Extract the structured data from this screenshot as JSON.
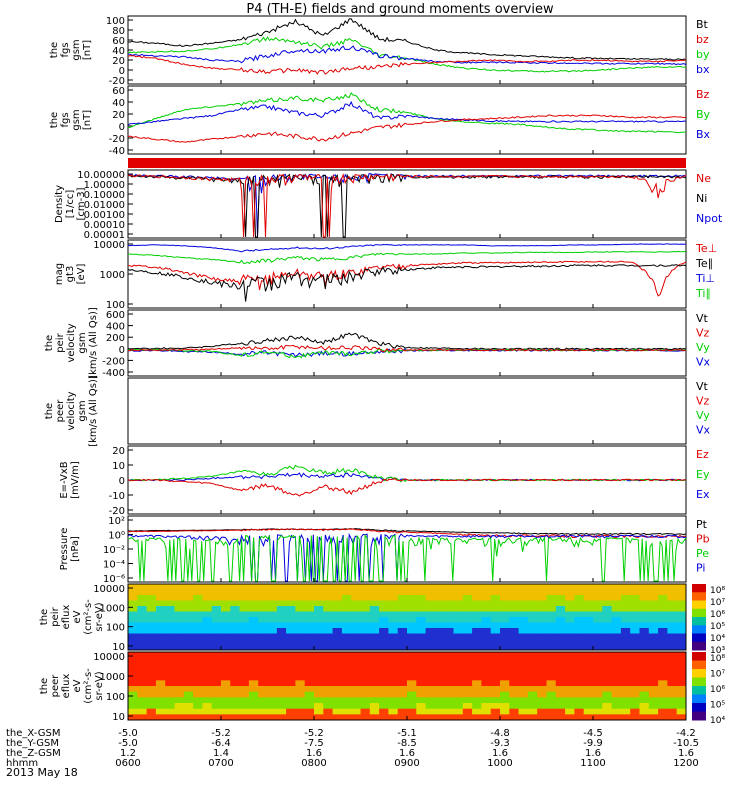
{
  "title": "P4 (TH-E) fields and ground moments overview",
  "date": "2013 May 18",
  "colors": {
    "black": "#000000",
    "red": "#e00000",
    "green": "#00d000",
    "blue": "#0000e0"
  },
  "chart_data": {
    "type": "line",
    "x_range": [
      "0600",
      "1200"
    ],
    "time_ticks": [
      "0600",
      "0700",
      "0800",
      "0900",
      "1000",
      "1100",
      "1200"
    ],
    "orbit": {
      "labels": [
        "the_X-GSM",
        "the_Y-GSM",
        "the_Z-GSM",
        "hhmm"
      ],
      "rows": [
        [
          "-5.0",
          "-5.2",
          "-5.2",
          "-5.1",
          "-4.8",
          "-4.5",
          "-4.2"
        ],
        [
          "-5.0",
          "-6.4",
          "-7.5",
          "-8.5",
          "-9.3",
          "-9.9",
          "-10.5"
        ],
        [
          "1.2",
          "1.4",
          "1.6",
          "1.6",
          "1.6",
          "1.6",
          "1.6"
        ]
      ]
    },
    "panels": [
      {
        "ylabel": [
          "the",
          "fgs",
          "gsm",
          "[nT]"
        ],
        "yticks": [
          "100",
          "80",
          "60",
          "40",
          "20",
          "0",
          "-20"
        ],
        "ylim": [
          -20,
          100
        ],
        "legend": [
          {
            "label": "Bt",
            "color": "#000000"
          },
          {
            "label": "bz",
            "color": "#e00000"
          },
          {
            "label": "by",
            "color": "#00d000"
          },
          {
            "label": "bx",
            "color": "#0000e0"
          }
        ],
        "series": [
          {
            "color": "#000000",
            "values": [
              55,
              52,
              47,
              52,
              58,
              72,
              90,
              65,
              95,
              60,
              55,
              40,
              35,
              32,
              30,
              28,
              26,
              25,
              24,
              24,
              23
            ]
          },
          {
            "color": "#00d000",
            "values": [
              35,
              37,
              38,
              42,
              50,
              60,
              55,
              45,
              58,
              30,
              25,
              15,
              8,
              5,
              3,
              2,
              3,
              5,
              8,
              10,
              10
            ]
          },
          {
            "color": "#0000e0",
            "values": [
              32,
              30,
              28,
              22,
              20,
              30,
              40,
              38,
              45,
              30,
              25,
              20,
              18,
              18,
              18,
              17,
              17,
              16,
              16,
              16,
              15
            ]
          },
          {
            "color": "#e00000",
            "values": [
              30,
              25,
              15,
              8,
              5,
              2,
              5,
              0,
              8,
              10,
              15,
              18,
              20,
              22,
              20,
              20,
              22,
              22,
              20,
              20,
              22
            ]
          }
        ]
      },
      {
        "ylabel": [
          "the",
          "fgs",
          "gsm",
          "[nT]"
        ],
        "yticks": [
          "60",
          "40",
          "20",
          "0",
          "-20",
          "-40"
        ],
        "ylim": [
          -50,
          65
        ],
        "legend": [
          {
            "label": "Bz",
            "color": "#e00000"
          },
          {
            "label": "By",
            "color": "#00d000"
          },
          {
            "label": "Bx",
            "color": "#0000e0"
          }
        ],
        "series": [
          {
            "color": "#00d000",
            "values": [
              -5,
              10,
              25,
              30,
              35,
              40,
              45,
              40,
              50,
              25,
              20,
              10,
              5,
              2,
              0,
              -5,
              -8,
              -10,
              -12,
              -12,
              -13
            ]
          },
          {
            "color": "#0000e0",
            "values": [
              0,
              5,
              10,
              15,
              25,
              30,
              20,
              15,
              35,
              10,
              15,
              10,
              8,
              6,
              5,
              5,
              5,
              5,
              5,
              5,
              5
            ]
          },
          {
            "color": "#e00000",
            "values": [
              -20,
              -25,
              -30,
              -25,
              -20,
              -15,
              -20,
              -25,
              -15,
              -5,
              0,
              5,
              8,
              10,
              12,
              15,
              15,
              15,
              12,
              12,
              12
            ]
          }
        ]
      },
      {
        "ylabel": [
          "Density",
          "[1/cc]",
          "[cm-3]"
        ],
        "yticks": [
          "10.00000",
          "1.00000",
          "0.10000",
          "0.01000",
          "0.00100",
          "0.00010",
          "0.00001"
        ],
        "ylim": [
          -5,
          1
        ],
        "log": true,
        "legend": [
          {
            "label": "Ne",
            "color": "#e00000"
          },
          {
            "label": "Ni",
            "color": "#000000"
          },
          {
            "label": "Npot",
            "color": "#0000e0"
          }
        ],
        "series": [
          {
            "color": "#0000e0",
            "values": [
              0.35,
              0.3,
              0.25,
              0.2,
              0.15,
              0.2,
              0.3,
              0.2,
              0.25,
              0.3,
              0.3,
              0.3,
              0.3,
              0.3,
              0.3,
              0.3,
              0.3,
              0.3,
              0.3,
              0.3,
              0.3
            ]
          },
          {
            "color": "#000000",
            "values": [
              0.3,
              0.25,
              0.2,
              0.15,
              0.12,
              0.15,
              0.25,
              0.15,
              0.2,
              0.25,
              0.25,
              0.25,
              0.25,
              0.25,
              0.25,
              0.25,
              0.25,
              0.25,
              0.25,
              0.25,
              0.25
            ]
          },
          {
            "color": "#e00000",
            "values": [
              0.32,
              0.27,
              0.22,
              0.17,
              0.13,
              0.17,
              0.27,
              0.17,
              0.22,
              0.27,
              0.27,
              0.27,
              0.27,
              0.27,
              0.27,
              0.27,
              0.27,
              0.27,
              0.27,
              1e-05,
              0.27
            ]
          }
        ]
      },
      {
        "ylabel": [
          "mag",
          "gt3",
          "[eV]"
        ],
        "yticks": [
          "10000",
          "1000",
          "100"
        ],
        "ylim": [
          100,
          12000
        ],
        "log": true,
        "legend": [
          {
            "label": "Te⊥",
            "color": "#e00000"
          },
          {
            "label": "Te∥",
            "color": "#000000"
          },
          {
            "label": "Ti⊥",
            "color": "#0000e0"
          },
          {
            "label": "Ti∥",
            "color": "#00d000"
          }
        ],
        "series": [
          {
            "color": "#0000e0",
            "values": [
              8000,
              8500,
              8000,
              7000,
              5500,
              6000,
              7000,
              6500,
              7500,
              8500,
              8500,
              8500,
              8500,
              8000,
              8000,
              8000,
              8500,
              8500,
              9000,
              9000,
              9000
            ]
          },
          {
            "color": "#00d000",
            "values": [
              4500,
              4000,
              3500,
              3000,
              2500,
              2800,
              3500,
              3000,
              3500,
              4500,
              4500,
              4500,
              4800,
              4800,
              5000,
              5000,
              5000,
              5200,
              5200,
              5200,
              5300
            ]
          },
          {
            "color": "#e00000",
            "values": [
              2000,
              1800,
              1200,
              800,
              600,
              800,
              1200,
              900,
              1200,
              1800,
              2000,
              2200,
              2400,
              2400,
              2500,
              2500,
              2600,
              2600,
              2600,
              150,
              2600
            ]
          },
          {
            "color": "#000000",
            "values": [
              1500,
              1200,
              900,
              600,
              450,
              600,
              900,
              700,
              900,
              1400,
              1500,
              1700,
              1800,
              1800,
              1900,
              1900,
              2000,
              2000,
              2000,
              2000,
              2000
            ]
          }
        ]
      },
      {
        "ylabel": [
          "the",
          "peir",
          "velocity",
          "gsm",
          "[km/s (All Qs)]"
        ],
        "yticks": [
          "600",
          "400",
          "200",
          "0",
          "-200",
          "-400"
        ],
        "ylim": [
          -400,
          620
        ],
        "legend": [
          {
            "label": "Vt",
            "color": "#000000"
          },
          {
            "label": "Vz",
            "color": "#e00000"
          },
          {
            "label": "Vy",
            "color": "#00d000"
          },
          {
            "label": "Vx",
            "color": "#0000e0"
          }
        ],
        "series": [
          {
            "color": "#000000",
            "values": [
              20,
              25,
              30,
              60,
              100,
              150,
              200,
              120,
              250,
              100,
              40,
              30,
              25,
              20,
              20,
              20,
              20,
              20,
              20,
              20,
              20
            ]
          },
          {
            "color": "#0000e0",
            "values": [
              -10,
              -5,
              -20,
              -30,
              -60,
              -40,
              -80,
              -50,
              -60,
              -20,
              -10,
              -5,
              -5,
              -5,
              -5,
              -5,
              -5,
              -5,
              -5,
              -5,
              -5
            ]
          },
          {
            "color": "#00d000",
            "values": [
              0,
              5,
              -10,
              -20,
              -80,
              -30,
              -100,
              -40,
              -60,
              -15,
              -5,
              0,
              0,
              0,
              0,
              0,
              0,
              0,
              0,
              0,
              0
            ]
          },
          {
            "color": "#e00000",
            "values": [
              0,
              0,
              5,
              10,
              40,
              20,
              60,
              30,
              40,
              10,
              5,
              0,
              0,
              0,
              0,
              0,
              0,
              0,
              0,
              0,
              0
            ]
          }
        ]
      },
      {
        "ylabel": [
          "the",
          "peer",
          "velocity",
          "gsm",
          "[km/s (All Qs)]"
        ],
        "yticks": [],
        "ylim": [
          -1,
          1
        ],
        "legend": [
          {
            "label": "Vt",
            "color": "#000000"
          },
          {
            "label": "Vz",
            "color": "#e00000"
          },
          {
            "label": "Vy",
            "color": "#00d000"
          },
          {
            "label": "Vx",
            "color": "#0000e0"
          }
        ],
        "series": []
      },
      {
        "ylabel": [
          "E=-VxB",
          "[mV/m]"
        ],
        "yticks": [
          "20",
          "10",
          "0",
          "-10",
          "-20"
        ],
        "ylim": [
          -20,
          20
        ],
        "legend": [
          {
            "label": "Ez",
            "color": "#e00000"
          },
          {
            "label": "Ey",
            "color": "#00d000"
          },
          {
            "label": "Ex",
            "color": "#0000e0"
          }
        ],
        "series": [
          {
            "color": "#0000e0",
            "values": [
              0,
              0,
              0,
              1,
              2,
              2,
              3,
              2,
              3,
              1,
              0,
              0,
              0,
              0,
              0,
              0,
              0,
              0,
              0,
              0,
              0
            ]
          },
          {
            "color": "#00d000",
            "values": [
              0,
              0,
              1,
              2,
              5,
              3,
              8,
              4,
              6,
              1,
              0,
              0,
              0,
              0,
              0,
              0,
              0,
              0,
              0,
              0,
              0
            ]
          },
          {
            "color": "#e00000",
            "values": [
              0,
              0,
              -1,
              -2,
              -6,
              -3,
              -9,
              -4,
              -7,
              -1,
              0,
              0,
              0,
              0,
              0,
              0,
              0,
              0,
              0,
              0,
              0
            ]
          }
        ]
      },
      {
        "ylabel": [
          "Pressure",
          "[nPa]"
        ],
        "yticks": [
          "10²",
          "10⁰",
          "10⁻²",
          "10⁻⁴",
          "10⁻⁶"
        ],
        "ylim": [
          -6.5,
          2
        ],
        "log": true,
        "legend": [
          {
            "label": "Pt",
            "color": "#000000"
          },
          {
            "label": "Pb",
            "color": "#e00000"
          },
          {
            "label": "Pe",
            "color": "#00d000"
          },
          {
            "label": "Pi",
            "color": "#0000e0"
          }
        ],
        "series": [
          {
            "color": "#000000",
            "values": [
              1.2,
              1.3,
              1.4,
              1.5,
              1.7,
              1.9,
              2.0,
              1.8,
              2.2,
              1.5,
              1.2,
              1.0,
              0.8,
              0.7,
              0.6,
              0.5,
              0.5,
              0.5,
              0.5,
              0.5,
              0.5
            ]
          },
          {
            "color": "#e00000",
            "values": [
              1.0,
              1.0,
              1.2,
              1.3,
              1.5,
              1.8,
              2.0,
              1.6,
              2.0,
              1.0,
              0.8,
              0.6,
              0.4,
              0.3,
              0.3,
              0.3,
              0.25,
              0.25,
              0.25,
              0.25,
              0.25
            ]
          },
          {
            "color": "#0000e0",
            "values": [
              0.3,
              0.25,
              0.2,
              0.15,
              0.08,
              0.1,
              0.15,
              0.1,
              0.15,
              0.2,
              0.25,
              0.25,
              0.25,
              0.25,
              0.25,
              0.25,
              0.25,
              0.25,
              0.25,
              0.25,
              0.25
            ]
          },
          {
            "color": "#00d000",
            "values": [
              0.08,
              0.06,
              0.05,
              0.03,
              0.02,
              0.03,
              0.05,
              0.03,
              0.04,
              0.06,
              0.07,
              0.07,
              0.07,
              0.07,
              0.07,
              0.07,
              0.07,
              0.07,
              0.07,
              3e-07,
              0.07
            ]
          }
        ]
      },
      {
        "type": "heatmap",
        "ylabel": [
          "the",
          "peir",
          "eflux",
          "eV",
          "(cm²-s-",
          "sr-eV)"
        ],
        "yticks": [
          "10000",
          "1000",
          "100",
          "10"
        ],
        "colorbar_ticks": [
          "10⁸",
          "10⁷",
          "10⁶",
          "10⁵",
          "10⁴",
          "10³"
        ]
      },
      {
        "type": "heatmap",
        "ylabel": [
          "the",
          "peer",
          "eflux",
          "eV",
          "(cm²-s-",
          "sr-eV)"
        ],
        "yticks": [
          "10000",
          "1000",
          "100",
          "10"
        ],
        "colorbar_ticks": [
          "10⁸",
          "10⁷",
          "10⁶",
          "10⁵",
          "10⁴"
        ]
      }
    ]
  }
}
